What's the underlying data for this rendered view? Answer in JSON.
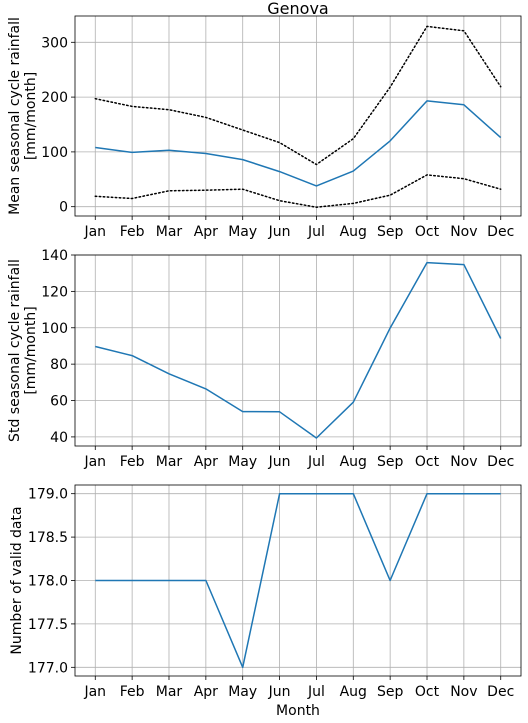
{
  "chart_data": [
    {
      "type": "line",
      "title": "Genova",
      "ylabel": [
        "Mean seasonal cycle rainfall",
        "[mm/month]"
      ],
      "xlabel": "",
      "categories": [
        "Jan",
        "Feb",
        "Mar",
        "Apr",
        "May",
        "Jun",
        "Jul",
        "Aug",
        "Sep",
        "Oct",
        "Nov",
        "Dec"
      ],
      "ylim": [
        -17,
        348
      ],
      "yticks": [
        0,
        100,
        200,
        300
      ],
      "grid": true,
      "series": [
        {
          "style": "solid",
          "color": "#1f77b4",
          "values": [
            108,
            99,
            103,
            97,
            86,
            64,
            38,
            65,
            120,
            193,
            186,
            126
          ]
        },
        {
          "style": "dotted",
          "color": "#000000",
          "values": [
            197,
            183,
            177,
            163,
            140,
            117,
            77,
            124,
            218,
            329,
            321,
            219
          ]
        },
        {
          "style": "dotted",
          "color": "#000000",
          "values": [
            19,
            15,
            29,
            30,
            32,
            11,
            -1,
            6,
            21,
            58,
            51,
            32
          ]
        }
      ]
    },
    {
      "type": "line",
      "title": "",
      "ylabel": [
        "Std seasonal cycle rainfall",
        "[mm/month]"
      ],
      "xlabel": "",
      "categories": [
        "Jan",
        "Feb",
        "Mar",
        "Apr",
        "May",
        "Jun",
        "Jul",
        "Aug",
        "Sep",
        "Oct",
        "Nov",
        "Dec"
      ],
      "ylim": [
        35,
        140
      ],
      "yticks": [
        40,
        60,
        80,
        100,
        120,
        140
      ],
      "grid": true,
      "series": [
        {
          "style": "solid",
          "color": "#1f77b4",
          "values": [
            89.7,
            84.7,
            74.7,
            66.4,
            53.9,
            53.8,
            39.4,
            59.1,
            99.8,
            135.8,
            134.7,
            94.1
          ]
        }
      ]
    },
    {
      "type": "line",
      "title": "",
      "ylabel": [
        "Number of valid data"
      ],
      "xlabel": "Month",
      "categories": [
        "Jan",
        "Feb",
        "Mar",
        "Apr",
        "May",
        "Jun",
        "Jul",
        "Aug",
        "Sep",
        "Oct",
        "Nov",
        "Dec"
      ],
      "ylim": [
        176.9,
        179.1
      ],
      "yticks": [
        177.0,
        177.5,
        178.0,
        178.5,
        179.0
      ],
      "ytick_format": 1,
      "grid": true,
      "series": [
        {
          "style": "solid",
          "color": "#1f77b4",
          "values": [
            178,
            178,
            178,
            178,
            177,
            179,
            179,
            179,
            178,
            179,
            179,
            179
          ]
        }
      ]
    }
  ]
}
